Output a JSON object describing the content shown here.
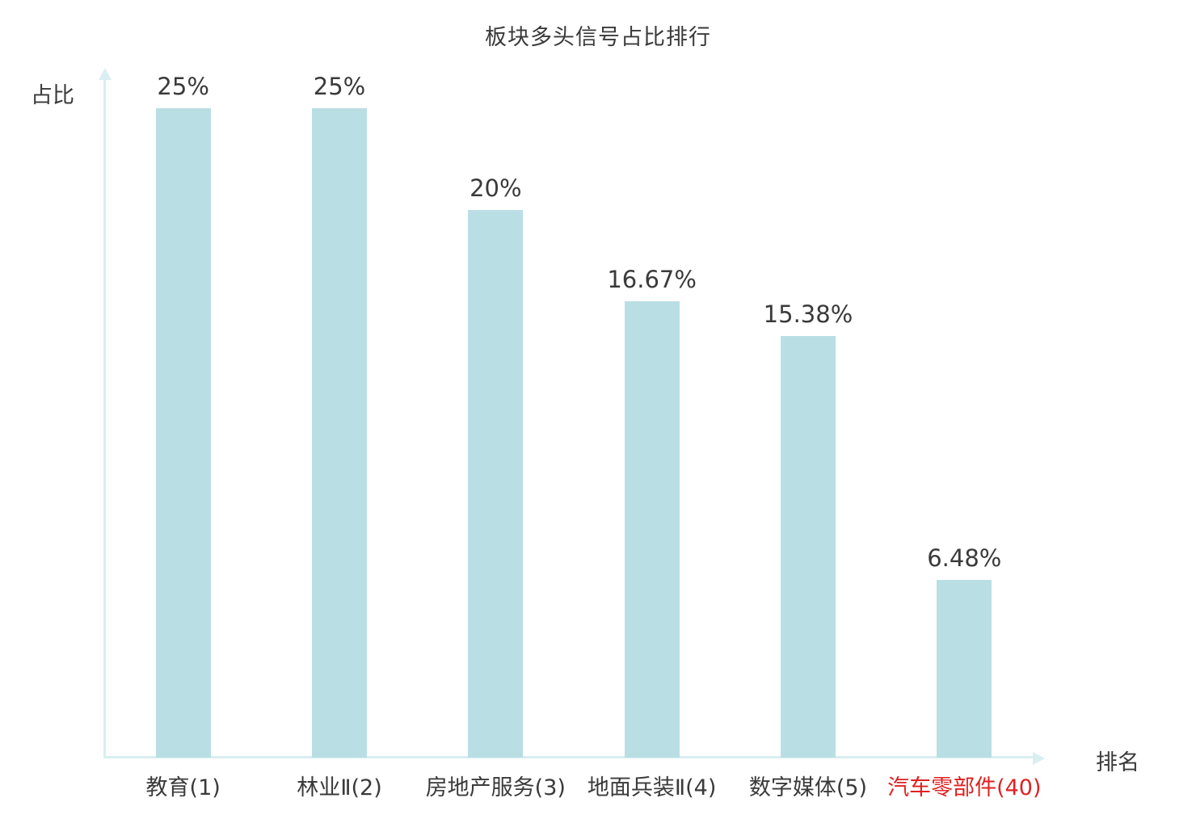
{
  "chart_data": {
    "type": "bar",
    "title": "板块多头信号占比排行",
    "xlabel": "排名",
    "ylabel": "占比",
    "categories": [
      "教育(1)",
      "林业Ⅱ(2)",
      "房地产服务(3)",
      "地面兵装Ⅱ(4)",
      "数字媒体(5)",
      "汽车零部件(40)"
    ],
    "values": [
      25,
      25,
      20,
      16.67,
      15.38,
      6.48
    ],
    "value_labels": [
      "25%",
      "25%",
      "20%",
      "16.67%",
      "15.38%",
      "6.48%"
    ],
    "highlight_index": 5,
    "ylim": [
      0,
      25
    ],
    "grid": false,
    "legend": false,
    "colors": {
      "bar_fill": "#b9dfe4",
      "axis": "#d9eef0",
      "text": "#3a3a3a",
      "highlight": "#e02121"
    }
  }
}
